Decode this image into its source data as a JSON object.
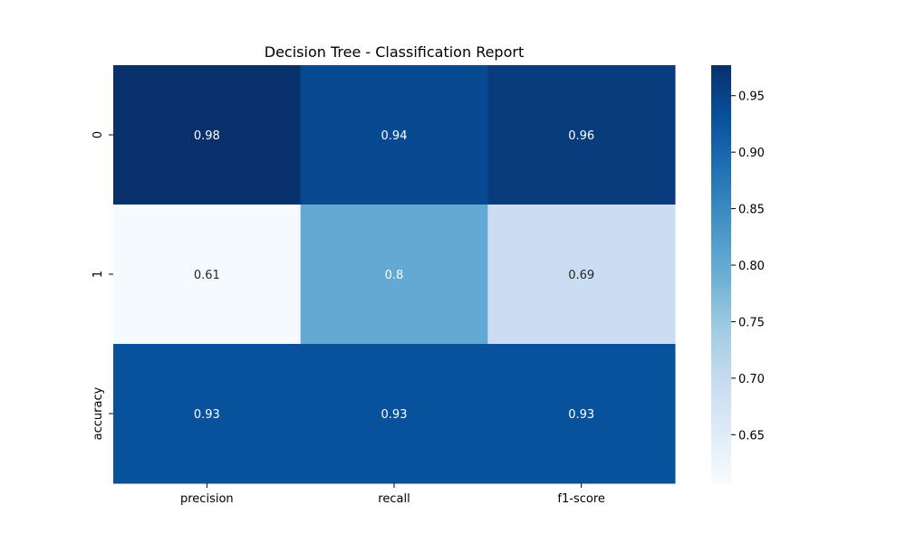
{
  "chart_data": {
    "type": "heatmap",
    "title": "Decision Tree - Classification Report",
    "xlabel": "",
    "ylabel": "",
    "columns": [
      "precision",
      "recall",
      "f1-score"
    ],
    "rows": [
      "0",
      "1",
      "accuracy"
    ],
    "values": [
      [
        0.98,
        0.94,
        0.96
      ],
      [
        0.61,
        0.8,
        0.69
      ],
      [
        0.93,
        0.93,
        0.93
      ]
    ],
    "value_labels": [
      [
        "0.98",
        "0.94",
        "0.96"
      ],
      [
        "0.61",
        "0.8",
        "0.69"
      ],
      [
        "0.93",
        "0.93",
        "0.93"
      ]
    ],
    "colormap": "Blues",
    "colorbar": {
      "range": [
        0.607,
        0.977
      ],
      "ticks": [
        0.65,
        0.7,
        0.75,
        0.8,
        0.85,
        0.9,
        0.95
      ],
      "tick_labels": [
        "0.65",
        "0.70",
        "0.75",
        "0.80",
        "0.85",
        "0.90",
        "0.95"
      ]
    }
  }
}
